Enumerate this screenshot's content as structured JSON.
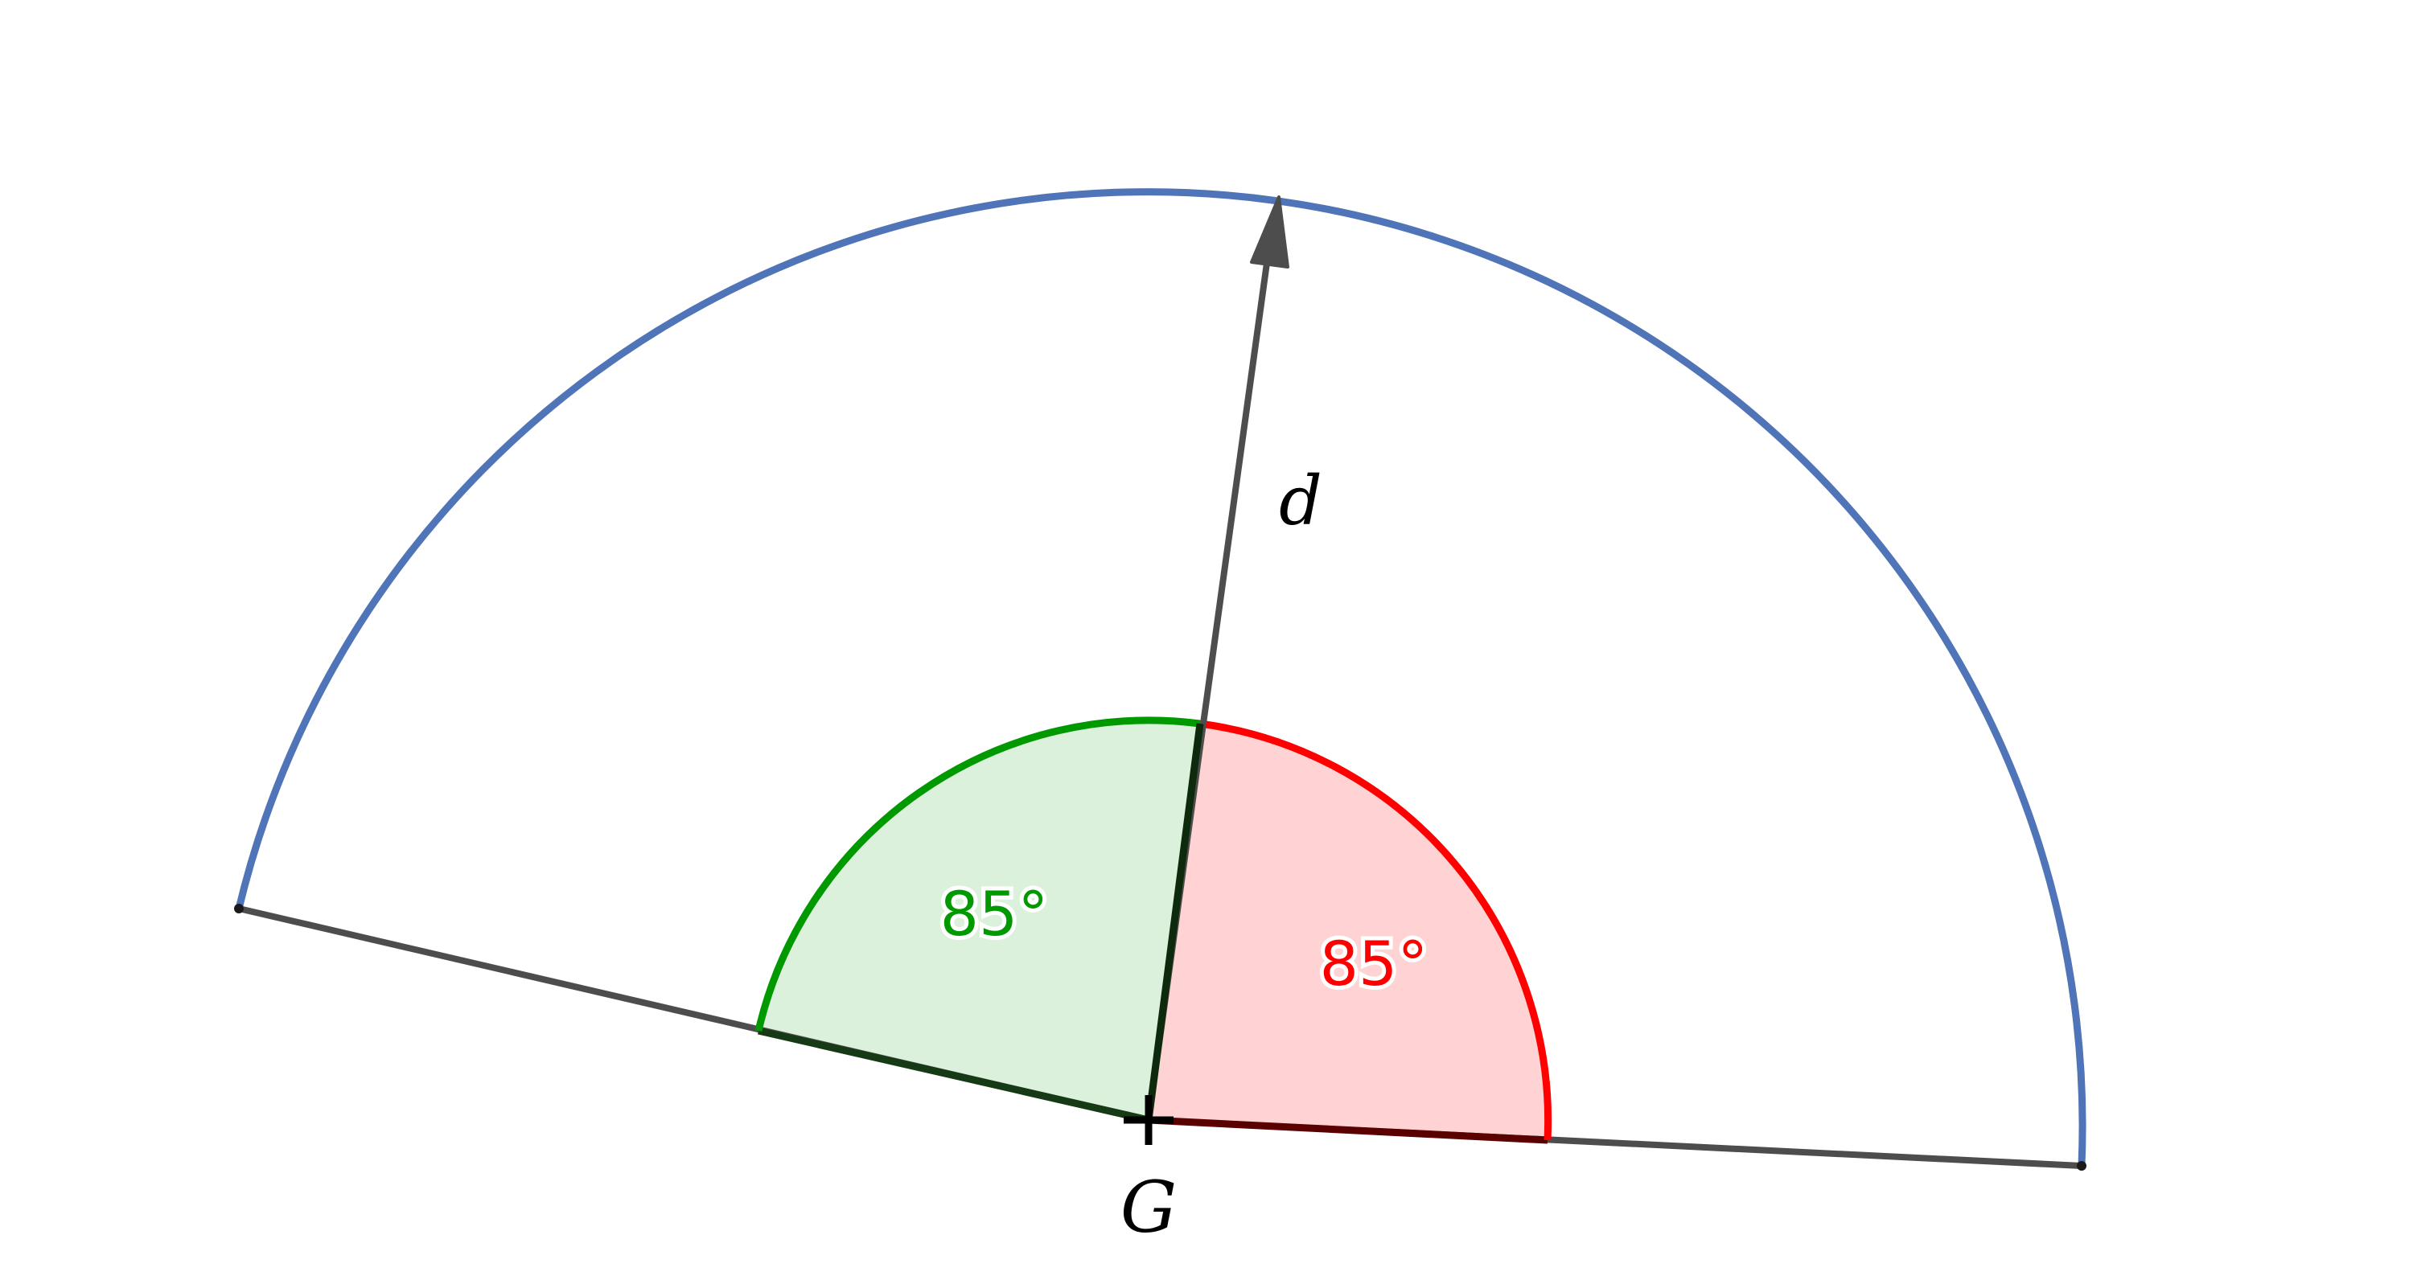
{
  "labels": {
    "center": "G",
    "vector": "d",
    "angle_left": "85°",
    "angle_right": "85°"
  },
  "colors": {
    "outer_arc": "#4f74b8",
    "segment": "#4d4d4d",
    "green_stroke": "#009900",
    "green_fill": "#dcf1dc",
    "red_stroke": "#ff0000",
    "red_fill": "#ffd3d3",
    "text": "#000000"
  }
}
